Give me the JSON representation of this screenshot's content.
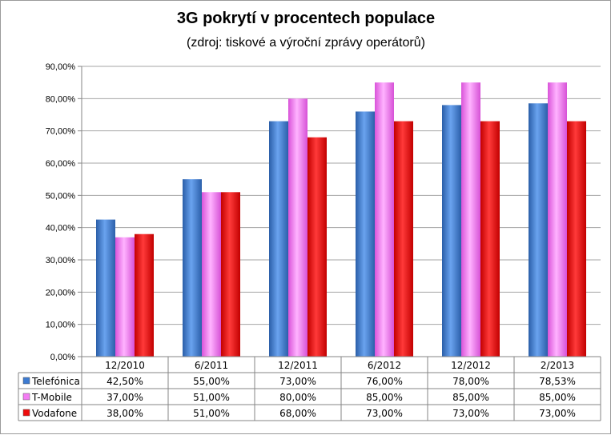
{
  "chart_data": {
    "type": "bar",
    "title": "3G pokrytí  v procentech populace",
    "subtitle": "(zdroj: tiskové a výroční zprávy operátorů)",
    "categories": [
      "12/2010",
      "6/2011",
      "12/2011",
      "6/2012",
      "12/2012",
      "2/2013"
    ],
    "ylim": [
      0,
      90
    ],
    "yticks": [
      "0,00%",
      "10,00%",
      "20,00%",
      "30,00%",
      "40,00%",
      "50,00%",
      "60,00%",
      "70,00%",
      "80,00%",
      "90,00%"
    ],
    "grid": true,
    "legend": "data-table",
    "series": [
      {
        "name": "Telefónica",
        "color": "#3d7bd1",
        "values": [
          42.5,
          55,
          73,
          76,
          78,
          78.53
        ],
        "labels": [
          "42,50%",
          "55,00%",
          "73,00%",
          "76,00%",
          "78,00%",
          "78,53%"
        ]
      },
      {
        "name": "T-Mobile",
        "color": "#f47cf4",
        "values": [
          37,
          51,
          80,
          85,
          85,
          85
        ],
        "labels": [
          "37,00%",
          "51,00%",
          "80,00%",
          "85,00%",
          "85,00%",
          "85,00%"
        ]
      },
      {
        "name": "Vodafone",
        "color": "#ee0c0c",
        "values": [
          38,
          51,
          68,
          73,
          73,
          73
        ],
        "labels": [
          "38,00%",
          "51,00%",
          "68,00%",
          "73,00%",
          "73,00%",
          "73,00%"
        ]
      }
    ]
  }
}
